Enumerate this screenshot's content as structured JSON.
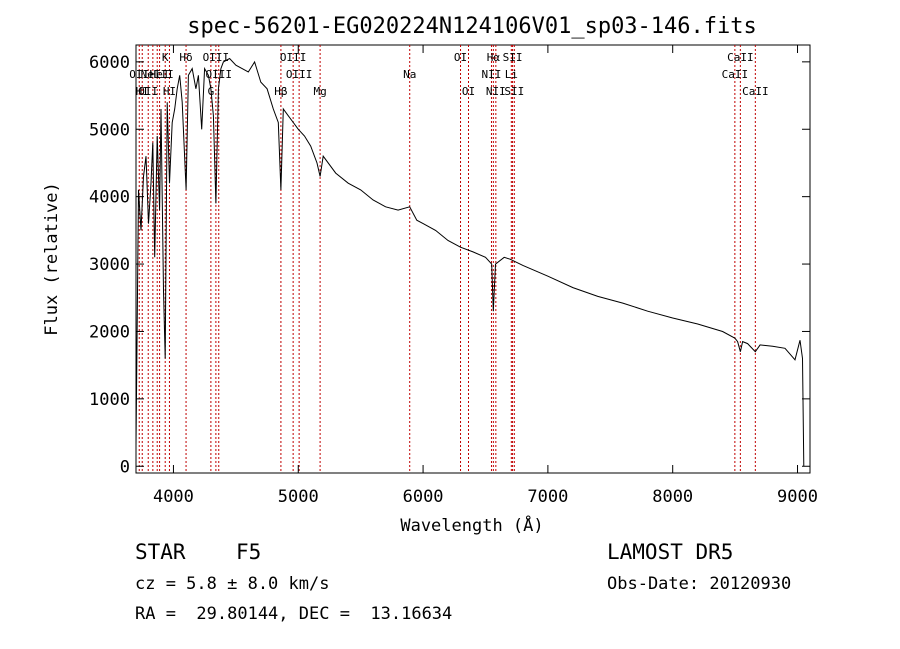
{
  "chart_data": {
    "type": "line",
    "title": "spec-56201-EG020224N124106V01_sp03-146.fits",
    "xlabel": "Wavelength (Å)",
    "ylabel": "Flux (relative)",
    "xlim": [
      3700,
      9100
    ],
    "ylim": [
      -100,
      6250
    ],
    "xticks": [
      4000,
      5000,
      6000,
      7000,
      8000,
      9000
    ],
    "yticks": [
      0,
      1000,
      2000,
      3000,
      4000,
      5000,
      6000
    ],
    "grid": false,
    "line_color": "#000000",
    "marker_color": "#c00000",
    "series": [
      {
        "x": [
          3700,
          3720,
          3740,
          3760,
          3780,
          3800,
          3820,
          3835,
          3850,
          3870,
          3889,
          3900,
          3920,
          3934,
          3950,
          3968,
          3990,
          4010,
          4030,
          4050,
          4070,
          4101,
          4120,
          4150,
          4180,
          4200,
          4226,
          4250,
          4280,
          4300,
          4320,
          4340,
          4360,
          4380,
          4400,
          4450,
          4500,
          4550,
          4600,
          4650,
          4700,
          4750,
          4800,
          4840,
          4861,
          4880,
          4920,
          4960,
          5000,
          5050,
          5100,
          5150,
          5175,
          5200,
          5300,
          5400,
          5500,
          5600,
          5700,
          5800,
          5893,
          5950,
          6000,
          6100,
          6200,
          6300,
          6400,
          6500,
          6550,
          6563,
          6580,
          6650,
          6700,
          6800,
          7000,
          7200,
          7400,
          7600,
          7800,
          8000,
          8200,
          8400,
          8498,
          8520,
          8542,
          8560,
          8600,
          8662,
          8700,
          8800,
          8900,
          8980,
          9020,
          9040,
          9050
        ],
        "y": [
          300,
          4100,
          3500,
          4300,
          4600,
          3600,
          4200,
          4800,
          3100,
          4900,
          3800,
          5300,
          2600,
          1600,
          5400,
          4200,
          5100,
          5300,
          5600,
          5800,
          5400,
          4100,
          5800,
          5900,
          5600,
          5800,
          5000,
          5900,
          5800,
          5600,
          5200,
          3900,
          5600,
          5900,
          6000,
          6050,
          5950,
          5900,
          5850,
          6000,
          5700,
          5600,
          5300,
          5100,
          4100,
          5300,
          5200,
          5100,
          5000,
          4900,
          4750,
          4500,
          4300,
          4600,
          4350,
          4200,
          4100,
          3950,
          3850,
          3800,
          3850,
          3650,
          3600,
          3500,
          3350,
          3250,
          3180,
          3100,
          3000,
          2300,
          3000,
          3100,
          3070,
          2980,
          2820,
          2650,
          2520,
          2420,
          2300,
          2200,
          2110,
          2000,
          1900,
          1850,
          1700,
          1850,
          1820,
          1700,
          1800,
          1780,
          1750,
          1580,
          1870,
          1600,
          0
        ]
      }
    ],
    "lines": [
      {
        "x": 3726,
        "label": "OII",
        "row": 1
      },
      {
        "x": 3750,
        "label": "HI",
        "row": 2
      },
      {
        "x": 3798,
        "label": "OII",
        "row": 2
      },
      {
        "x": 3835,
        "label": "H",
        "row": 1
      },
      {
        "x": 3870,
        "label": "NeIII",
        "row": 1
      },
      {
        "x": 3889,
        "label": "HeI",
        "row": 1
      },
      {
        "x": 3934,
        "label": "K",
        "row": 0
      },
      {
        "x": 3968,
        "label": "HI",
        "row": 2
      },
      {
        "x": 4101,
        "label": "Hδ",
        "row": 0
      },
      {
        "x": 4300,
        "label": "G",
        "row": 2
      },
      {
        "x": 4340,
        "label": "OIII",
        "row": 0
      },
      {
        "x": 4363,
        "label": "OIII",
        "row": 1
      },
      {
        "x": 4861,
        "label": "Hβ",
        "row": 2
      },
      {
        "x": 4959,
        "label": "OIII",
        "row": 0
      },
      {
        "x": 5007,
        "label": "OIII",
        "row": 1
      },
      {
        "x": 5175,
        "label": "Mg",
        "row": 2
      },
      {
        "x": 5893,
        "label": "Na",
        "row": 1
      },
      {
        "x": 6300,
        "label": "OI",
        "row": 0
      },
      {
        "x": 6364,
        "label": "OI",
        "row": 2
      },
      {
        "x": 6548,
        "label": "NII",
        "row": 1
      },
      {
        "x": 6563,
        "label": "Hα",
        "row": 0
      },
      {
        "x": 6583,
        "label": "NII",
        "row": 2
      },
      {
        "x": 6707,
        "label": "Li",
        "row": 1
      },
      {
        "x": 6717,
        "label": "SII",
        "row": 0
      },
      {
        "x": 6731,
        "label": "SII",
        "row": 2
      },
      {
        "x": 8498,
        "label": "CaII",
        "row": 1
      },
      {
        "x": 8542,
        "label": "CaII",
        "row": 0
      },
      {
        "x": 8662,
        "label": "CaII",
        "row": 2
      }
    ]
  },
  "info": {
    "class_label": "STAR",
    "subclass": "F5",
    "survey": "LAMOST DR5",
    "cz": "cz = 5.8 ± 8.0 km/s",
    "obs_date": "Obs-Date: 20120930",
    "coords": "RA =  29.80144, DEC =  13.16634"
  }
}
